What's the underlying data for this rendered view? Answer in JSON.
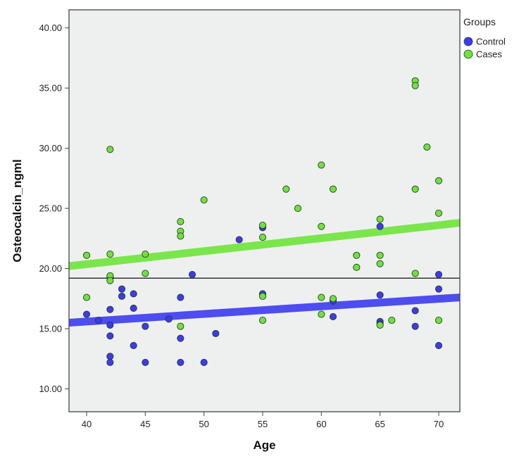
{
  "chart_data": {
    "type": "scatter",
    "title": "",
    "xlabel": "Age",
    "ylabel": "Osteocalcin_ngml",
    "xlim": [
      38.5,
      71.8
    ],
    "ylim": [
      8.1,
      41.5
    ],
    "x_ticks": [
      40,
      45,
      50,
      55,
      60,
      65,
      70
    ],
    "x_tick_labels": [
      "40",
      "45",
      "50",
      "55",
      "60",
      "65",
      "70"
    ],
    "y_ticks": [
      10,
      15,
      20,
      25,
      30,
      35,
      40
    ],
    "y_tick_labels": [
      "10.00",
      "15.00",
      "20.00",
      "25.00",
      "30.00",
      "35.00",
      "40.00"
    ],
    "grid": false,
    "background": "#eef0ef",
    "reference_line_y": 19.2,
    "legend": {
      "title": "Groups",
      "placement": "right",
      "entries": [
        {
          "label": "Control",
          "color": "#3b3bf0"
        },
        {
          "label": "Cases",
          "color": "#6ee33a"
        }
      ]
    },
    "series": [
      {
        "name": "Control",
        "color": "#3b3bf0",
        "points": [
          [
            40,
            16.2
          ],
          [
            41,
            15.7
          ],
          [
            42,
            16.6
          ],
          [
            42,
            15.3
          ],
          [
            42,
            14.4
          ],
          [
            42,
            12.7
          ],
          [
            42,
            12.2
          ],
          [
            42,
            19.3
          ],
          [
            43,
            18.3
          ],
          [
            43,
            17.7
          ],
          [
            44,
            17.9
          ],
          [
            44,
            16.7
          ],
          [
            44,
            13.6
          ],
          [
            45,
            15.2
          ],
          [
            45,
            12.2
          ],
          [
            47,
            15.8
          ],
          [
            48,
            17.6
          ],
          [
            48,
            14.2
          ],
          [
            48,
            12.2
          ],
          [
            49,
            19.5
          ],
          [
            50,
            12.2
          ],
          [
            51,
            14.6
          ],
          [
            53,
            22.4
          ],
          [
            55,
            17.9
          ],
          [
            61,
            17.3
          ],
          [
            61,
            16.0
          ],
          [
            65,
            17.8
          ],
          [
            65,
            15.6
          ],
          [
            65,
            15.4
          ],
          [
            68,
            16.5
          ],
          [
            68,
            15.2
          ],
          [
            70,
            18.3
          ],
          [
            70,
            13.6
          ],
          [
            70,
            19.5
          ],
          [
            65,
            23.5
          ],
          [
            55,
            23.4
          ]
        ],
        "fit_line": [
          [
            38.5,
            15.5
          ],
          [
            71.8,
            17.6
          ]
        ]
      },
      {
        "name": "Cases",
        "color": "#6ee33a",
        "points": [
          [
            40,
            21.1
          ],
          [
            40,
            17.6
          ],
          [
            42,
            29.9
          ],
          [
            42,
            21.2
          ],
          [
            42,
            19.4
          ],
          [
            42,
            19.0
          ],
          [
            45,
            21.2
          ],
          [
            45,
            19.6
          ],
          [
            48,
            23.9
          ],
          [
            48,
            23.1
          ],
          [
            48,
            22.7
          ],
          [
            48,
            15.2
          ],
          [
            50,
            25.7
          ],
          [
            55,
            23.6
          ],
          [
            55,
            22.6
          ],
          [
            55,
            17.7
          ],
          [
            55,
            15.7
          ],
          [
            57,
            26.6
          ],
          [
            58,
            25.0
          ],
          [
            60,
            28.6
          ],
          [
            60,
            23.5
          ],
          [
            60,
            17.6
          ],
          [
            60,
            16.2
          ],
          [
            61,
            26.6
          ],
          [
            61,
            17.5
          ],
          [
            63,
            21.1
          ],
          [
            63,
            20.1
          ],
          [
            65,
            24.1
          ],
          [
            65,
            21.1
          ],
          [
            65,
            20.4
          ],
          [
            65,
            15.3
          ],
          [
            66,
            15.7
          ],
          [
            68,
            35.6
          ],
          [
            68,
            35.2
          ],
          [
            68,
            26.6
          ],
          [
            68,
            19.6
          ],
          [
            69,
            30.1
          ],
          [
            70,
            27.3
          ],
          [
            70,
            24.6
          ],
          [
            70,
            15.7
          ]
        ],
        "fit_line": [
          [
            38.5,
            20.2
          ],
          [
            71.8,
            23.8
          ]
        ]
      }
    ]
  }
}
